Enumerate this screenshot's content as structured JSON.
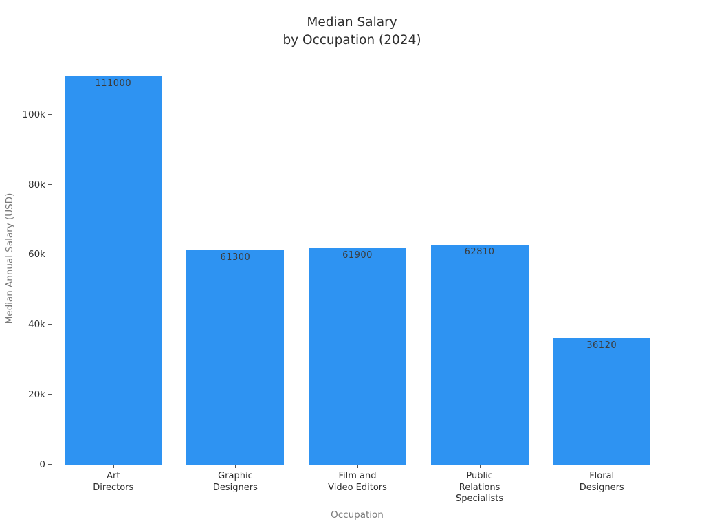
{
  "chart_data": {
    "type": "bar",
    "title": "Median Salary\nby Occupation (2024)",
    "xlabel": "Occupation",
    "ylabel": "Median Annual Salary (USD)",
    "categories": [
      "Art\nDirectors",
      "Graphic\nDesigners",
      "Film and\nVideo Editors",
      "Public\nRelations\nSpecialists",
      "Floral\nDesigners"
    ],
    "values": [
      111000,
      61300,
      61900,
      62810,
      36120
    ],
    "bar_labels": [
      "111000",
      "61300",
      "61900",
      "62810",
      "36120"
    ],
    "yticks": {
      "values": [
        0,
        20000,
        40000,
        60000,
        80000,
        100000
      ],
      "labels": [
        "0",
        "20k",
        "40k",
        "60k",
        "80k",
        "100k"
      ]
    },
    "ylim": [
      0,
      117800
    ],
    "grid": false,
    "legend": null,
    "bar_color": "#2e93f2",
    "bar_fraction_of_slot": 0.8,
    "colors": {
      "title": "#2e2e2e",
      "tick_labels": "#2f2f2f",
      "axis_titles": "#7a7a7a",
      "axis_line": "#cfcfcf",
      "tick_marks": "#555555",
      "value_labels": "#3b3b3b"
    }
  }
}
